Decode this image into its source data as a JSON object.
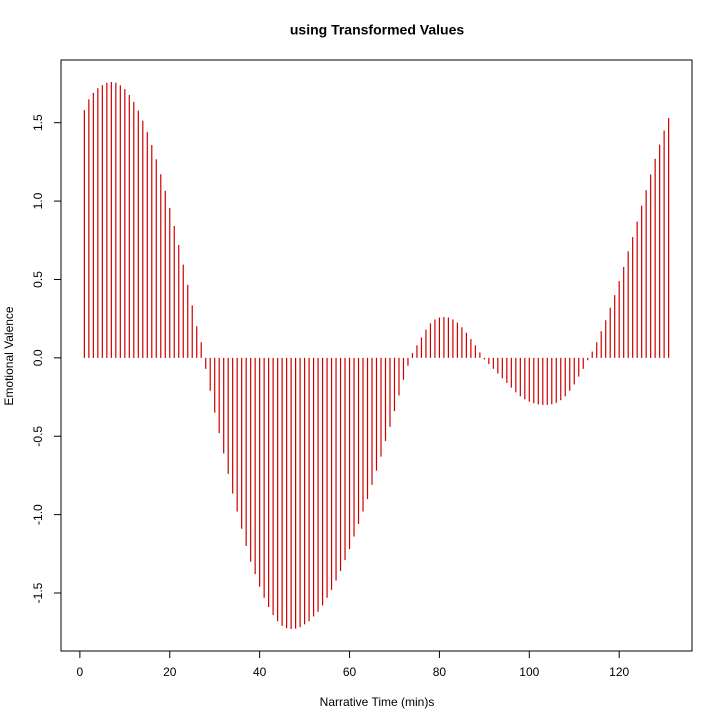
{
  "chart_data": {
    "type": "spike",
    "title": "using Transformed Values",
    "x_label": "Narrative Time (min)s",
    "y_label": "Emotional Valence",
    "color": "#cd0000",
    "x": [
      1,
      2,
      3,
      4,
      5,
      6,
      7,
      8,
      9,
      10,
      11,
      12,
      13,
      14,
      15,
      16,
      17,
      18,
      19,
      20,
      21,
      22,
      23,
      24,
      25,
      26,
      27,
      28,
      29,
      30,
      31,
      32,
      33,
      34,
      35,
      36,
      37,
      38,
      39,
      40,
      41,
      42,
      43,
      44,
      45,
      46,
      47,
      48,
      49,
      50,
      51,
      52,
      53,
      54,
      55,
      56,
      57,
      58,
      59,
      60,
      61,
      62,
      63,
      64,
      65,
      66,
      67,
      68,
      69,
      70,
      71,
      72,
      73,
      74,
      75,
      76,
      77,
      78,
      79,
      80,
      81,
      82,
      83,
      84,
      85,
      86,
      87,
      88,
      89,
      90,
      91,
      92,
      93,
      94,
      95,
      96,
      97,
      98,
      99,
      100,
      101,
      102,
      103,
      104,
      105,
      106,
      107,
      108,
      109,
      110,
      111,
      112,
      113,
      114,
      115,
      116,
      117,
      118,
      119,
      120,
      121,
      122,
      123,
      124,
      125,
      126,
      127,
      128,
      129,
      130,
      131
    ],
    "values": [
      1.58,
      1.65,
      1.69,
      1.72,
      1.74,
      1.755,
      1.76,
      1.755,
      1.739,
      1.714,
      1.677,
      1.633,
      1.577,
      1.513,
      1.44,
      1.358,
      1.267,
      1.171,
      1.066,
      0.957,
      0.841,
      0.72,
      0.595,
      0.466,
      0.335,
      0.202,
      0.1,
      -0.07,
      -0.21,
      -0.35,
      -0.48,
      -0.61,
      -0.74,
      -0.865,
      -0.98,
      -1.09,
      -1.2,
      -1.3,
      -1.38,
      -1.46,
      -1.53,
      -1.59,
      -1.64,
      -1.68,
      -1.71,
      -1.725,
      -1.73,
      -1.727,
      -1.718,
      -1.7,
      -1.68,
      -1.65,
      -1.62,
      -1.58,
      -1.53,
      -1.48,
      -1.42,
      -1.36,
      -1.29,
      -1.22,
      -1.14,
      -1.06,
      -0.98,
      -0.9,
      -0.81,
      -0.72,
      -0.63,
      -0.53,
      -0.44,
      -0.34,
      -0.24,
      -0.14,
      -0.05,
      0.03,
      0.08,
      0.13,
      0.18,
      0.22,
      0.245,
      0.257,
      0.26,
      0.257,
      0.245,
      0.225,
      0.195,
      0.16,
      0.12,
      0.08,
      0.035,
      -0.01,
      -0.04,
      -0.07,
      -0.1,
      -0.13,
      -0.16,
      -0.19,
      -0.22,
      -0.245,
      -0.265,
      -0.28,
      -0.29,
      -0.297,
      -0.3,
      -0.3,
      -0.296,
      -0.287,
      -0.27,
      -0.245,
      -0.21,
      -0.17,
      -0.12,
      -0.07,
      -0.015,
      0.04,
      0.1,
      0.17,
      0.24,
      0.32,
      0.4,
      0.49,
      0.58,
      0.68,
      0.77,
      0.87,
      0.97,
      1.07,
      1.17,
      1.27,
      1.36,
      1.45,
      1.53
    ],
    "xlim": [
      -4.2,
      136.2
    ],
    "xticks": [
      0,
      20,
      40,
      60,
      80,
      100,
      120
    ],
    "ylim": [
      -1.87,
      1.9
    ],
    "yticks": [
      -1.5,
      {
        "value": -1,
        "label": "-1.0"
      },
      -0.5,
      {
        "value": 0,
        "label": "0.0"
      },
      0.5,
      {
        "value": 1,
        "label": "1.0"
      },
      1.5
    ]
  }
}
